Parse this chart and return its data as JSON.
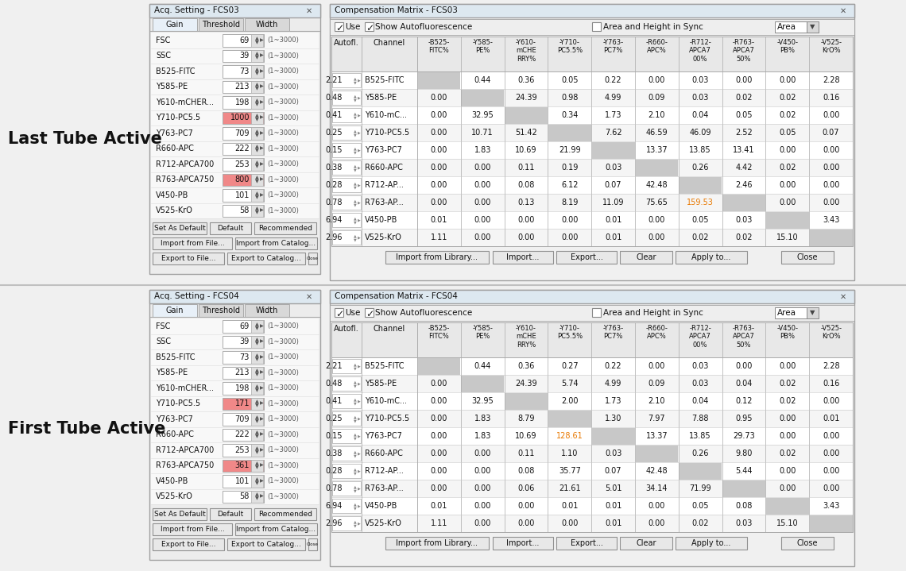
{
  "label_top": "Last Tube Active",
  "label_bottom": "First Tube Active",
  "fcs03_title": "Acq. Setting - FCS03",
  "fcs04_title": "Acq. Setting - FCS04",
  "cm03_title": "Compensation Matrix - FCS03",
  "cm04_title": "Compensation Matrix - FCS04",
  "gain_rows_top": [
    {
      "name": "FSC",
      "val": "69",
      "hl": false
    },
    {
      "name": "SSC",
      "val": "39",
      "hl": false
    },
    {
      "name": "B525-FITC",
      "val": "73",
      "hl": false
    },
    {
      "name": "Y585-PE",
      "val": "213",
      "hl": false
    },
    {
      "name": "Y610-mCHER...",
      "val": "198",
      "hl": false
    },
    {
      "name": "Y710-PC5.5",
      "val": "1000",
      "hl": true
    },
    {
      "name": "Y763-PC7",
      "val": "709",
      "hl": false
    },
    {
      "name": "R660-APC",
      "val": "222",
      "hl": false
    },
    {
      "name": "R712-APCA700",
      "val": "253",
      "hl": false
    },
    {
      "name": "R763-APCA750",
      "val": "800",
      "hl": true
    },
    {
      "name": "V450-PB",
      "val": "101",
      "hl": false
    },
    {
      "name": "V525-KrO",
      "val": "58",
      "hl": false
    }
  ],
  "gain_rows_bot": [
    {
      "name": "FSC",
      "val": "69",
      "hl": false
    },
    {
      "name": "SSC",
      "val": "39",
      "hl": false
    },
    {
      "name": "B525-FITC",
      "val": "73",
      "hl": false
    },
    {
      "name": "Y585-PE",
      "val": "213",
      "hl": false
    },
    {
      "name": "Y610-mCHER...",
      "val": "198",
      "hl": false
    },
    {
      "name": "Y710-PC5.5",
      "val": "171",
      "hl": true
    },
    {
      "name": "Y763-PC7",
      "val": "709",
      "hl": false
    },
    {
      "name": "R660-APC",
      "val": "222",
      "hl": false
    },
    {
      "name": "R712-APCA700",
      "val": "253",
      "hl": false
    },
    {
      "name": "R763-APCA750",
      "val": "361",
      "hl": true
    },
    {
      "name": "V450-PB",
      "val": "101",
      "hl": false
    },
    {
      "name": "V525-KrO",
      "val": "58",
      "hl": false
    }
  ],
  "cm_col_headers": [
    "-B525-\nFITC%",
    "-Y585-\nPE%",
    "-Y610-\nmCHE\nRRY%",
    "-Y710-\nPC5.5%",
    "-Y763-\nPC7%",
    "-R660-\nAPC%",
    "-R712-\nAPCA7\n00%",
    "-R763-\nAPCA7\n50%",
    "-V450-\nPB%",
    "-V525-\nKrO%"
  ],
  "cm03_rows": [
    {
      "autofl": "2.21",
      "channel": "B525-FITC",
      "vals": [
        "",
        "0.44",
        "0.36",
        "0.05",
        "0.22",
        "0.00",
        "0.03",
        "0.00",
        "0.00",
        "2.28"
      ],
      "hl_col": -1
    },
    {
      "autofl": "0.48",
      "channel": "Y585-PE",
      "vals": [
        "0.00",
        "",
        "24.39",
        "0.98",
        "4.99",
        "0.09",
        "0.03",
        "0.02",
        "0.02",
        "0.16"
      ],
      "hl_col": -1
    },
    {
      "autofl": "0.41",
      "channel": "Y610-mC...",
      "vals": [
        "0.00",
        "32.95",
        "",
        "0.34",
        "1.73",
        "2.10",
        "0.04",
        "0.05",
        "0.02",
        "0.00"
      ],
      "hl_col": -1
    },
    {
      "autofl": "0.25",
      "channel": "Y710-PC5.5",
      "vals": [
        "0.00",
        "10.71",
        "51.42",
        "",
        "7.62",
        "46.59",
        "46.09",
        "2.52",
        "0.05",
        "0.07"
      ],
      "hl_col": -1
    },
    {
      "autofl": "0.15",
      "channel": "Y763-PC7",
      "vals": [
        "0.00",
        "1.83",
        "10.69",
        "21.99",
        "",
        "13.37",
        "13.85",
        "13.41",
        "0.00",
        "0.00"
      ],
      "hl_col": -1
    },
    {
      "autofl": "0.38",
      "channel": "R660-APC",
      "vals": [
        "0.00",
        "0.00",
        "0.11",
        "0.19",
        "0.03",
        "",
        "0.26",
        "4.42",
        "0.02",
        "0.00"
      ],
      "hl_col": -1
    },
    {
      "autofl": "0.28",
      "channel": "R712-AP...",
      "vals": [
        "0.00",
        "0.00",
        "0.08",
        "6.12",
        "0.07",
        "42.48",
        "",
        "2.46",
        "0.00",
        "0.00"
      ],
      "hl_col": -1
    },
    {
      "autofl": "0.78",
      "channel": "R763-AP...",
      "vals": [
        "0.00",
        "0.00",
        "0.13",
        "8.19",
        "11.09",
        "75.65",
        "159.53",
        "",
        "0.00",
        "0.00"
      ],
      "hl_col": 6
    },
    {
      "autofl": "6.94",
      "channel": "V450-PB",
      "vals": [
        "0.01",
        "0.00",
        "0.00",
        "0.00",
        "0.01",
        "0.00",
        "0.05",
        "0.03",
        "",
        "3.43"
      ],
      "hl_col": -1
    },
    {
      "autofl": "2.96",
      "channel": "V525-KrO",
      "vals": [
        "1.11",
        "0.00",
        "0.00",
        "0.00",
        "0.01",
        "0.00",
        "0.02",
        "0.02",
        "15.10",
        ""
      ],
      "hl_col": -1
    }
  ],
  "cm04_rows": [
    {
      "autofl": "2.21",
      "channel": "B525-FITC",
      "vals": [
        "",
        "0.44",
        "0.36",
        "0.27",
        "0.22",
        "0.00",
        "0.03",
        "0.00",
        "0.00",
        "2.28"
      ],
      "hl_col": -1
    },
    {
      "autofl": "0.48",
      "channel": "Y585-PE",
      "vals": [
        "0.00",
        "",
        "24.39",
        "5.74",
        "4.99",
        "0.09",
        "0.03",
        "0.04",
        "0.02",
        "0.16"
      ],
      "hl_col": -1
    },
    {
      "autofl": "0.41",
      "channel": "Y610-mC...",
      "vals": [
        "0.00",
        "32.95",
        "",
        "2.00",
        "1.73",
        "2.10",
        "0.04",
        "0.12",
        "0.02",
        "0.00"
      ],
      "hl_col": -1
    },
    {
      "autofl": "0.25",
      "channel": "Y710-PC5.5",
      "vals": [
        "0.00",
        "1.83",
        "8.79",
        "",
        "1.30",
        "7.97",
        "7.88",
        "0.95",
        "0.00",
        "0.01"
      ],
      "hl_col": -1
    },
    {
      "autofl": "0.15",
      "channel": "Y763-PC7",
      "vals": [
        "0.00",
        "1.83",
        "10.69",
        "128.61",
        "",
        "13.37",
        "13.85",
        "29.73",
        "0.00",
        "0.00"
      ],
      "hl_col": 3
    },
    {
      "autofl": "0.38",
      "channel": "R660-APC",
      "vals": [
        "0.00",
        "0.00",
        "0.11",
        "1.10",
        "0.03",
        "",
        "0.26",
        "9.80",
        "0.02",
        "0.00"
      ],
      "hl_col": -1
    },
    {
      "autofl": "0.28",
      "channel": "R712-AP...",
      "vals": [
        "0.00",
        "0.00",
        "0.08",
        "35.77",
        "0.07",
        "42.48",
        "",
        "5.44",
        "0.00",
        "0.00"
      ],
      "hl_col": -1
    },
    {
      "autofl": "0.78",
      "channel": "R763-AP...",
      "vals": [
        "0.00",
        "0.00",
        "0.06",
        "21.61",
        "5.01",
        "34.14",
        "71.99",
        "",
        "0.00",
        "0.00"
      ],
      "hl_col": -1
    },
    {
      "autofl": "6.94",
      "channel": "V450-PB",
      "vals": [
        "0.01",
        "0.00",
        "0.00",
        "0.01",
        "0.01",
        "0.00",
        "0.05",
        "0.08",
        "",
        "3.43"
      ],
      "hl_col": -1
    },
    {
      "autofl": "2.96",
      "channel": "V525-KrO",
      "vals": [
        "1.11",
        "0.00",
        "0.00",
        "0.00",
        "0.01",
        "0.00",
        "0.02",
        "0.03",
        "15.10",
        ""
      ],
      "hl_col": -1
    }
  ],
  "col_bg": "#ffffff",
  "row_alt": "#f5f5f5",
  "diag_bg": "#d0d0d0",
  "hl_orange": "#e87800",
  "hl_pink": "#f08888",
  "titlebar_bg": "#dde8f0",
  "panel_bg": "#f0f0f0",
  "window_bg": "#ffffff",
  "btn_bg": "#e8e8e8",
  "tab_active": "#e8f0f8",
  "border": "#a0a0a0",
  "text": "#111111",
  "gray_text": "#666666"
}
